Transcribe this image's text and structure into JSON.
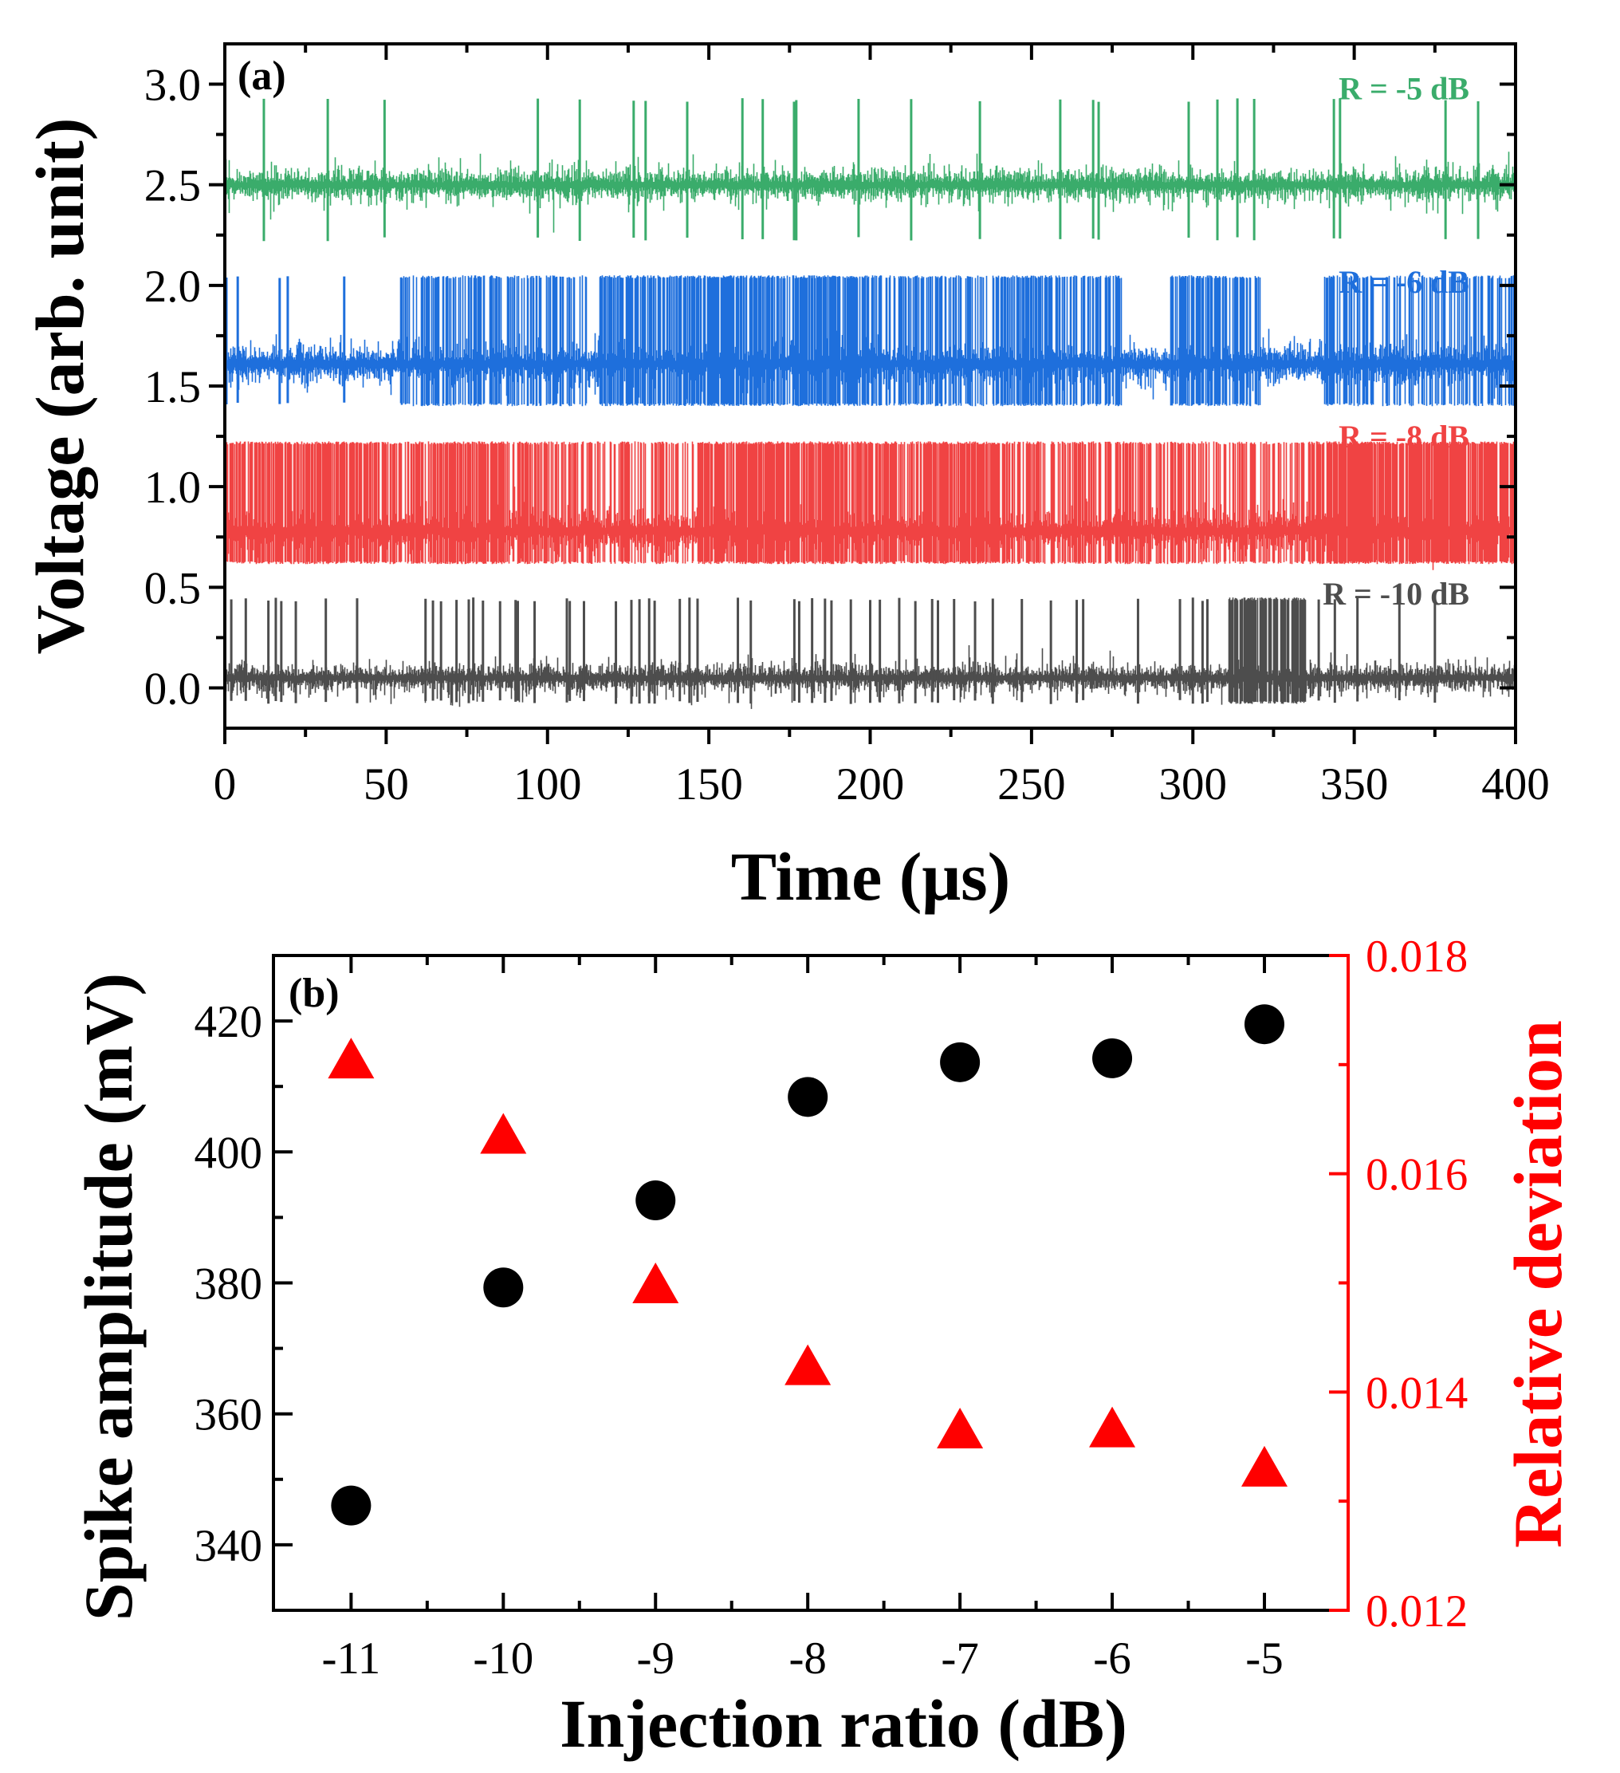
{
  "chart_data": [
    {
      "id": "a",
      "type": "line",
      "panel_label": "(a)",
      "xlabel": "Time (μs)",
      "ylabel": "Voltage (arb. unit)",
      "xlim": [
        0,
        400
      ],
      "ylim": [
        -0.2,
        3.2
      ],
      "xticks": [
        0,
        50,
        100,
        150,
        200,
        250,
        300,
        350,
        400
      ],
      "xtick_labels": [
        "0",
        "50",
        "100",
        "150",
        "200",
        "250",
        "300",
        "350",
        "400"
      ],
      "yticks": [
        0.0,
        0.5,
        1.0,
        1.5,
        2.0,
        2.5,
        3.0
      ],
      "ytick_labels": [
        "0.0",
        "0.5",
        "1.0",
        "1.5",
        "2.0",
        "2.5",
        "3.0"
      ],
      "grid": false,
      "series": [
        {
          "name": "R = -5 dB",
          "label": "R = -5 dB",
          "color": "#3aac6b",
          "baseline": 2.5,
          "noise": 0.04,
          "spike_top": 2.93,
          "spike_bottom": 2.22,
          "spike_times": [
            12.1,
            31.9,
            49.5,
            97.0,
            110.0,
            126.7,
            130.4,
            143.3,
            160.4,
            166.7,
            176.4,
            177.1,
            196.4,
            212.7,
            234.0,
            258.9,
            269.1,
            270.8,
            298.7,
            307.6,
            313.8,
            319.0,
            343.7,
            345.6,
            378.3,
            388.4
          ],
          "burst_regions": []
        },
        {
          "name": "R = -6 dB",
          "label": "R = -6 dB",
          "color": "#1e6fdc",
          "baseline": 1.61,
          "noise": 0.05,
          "spike_top": 2.05,
          "spike_bottom": 1.4,
          "spike_times": [
            0.5,
            4.0,
            17.0,
            19.5,
            37.0
          ],
          "burst_regions": [
            [
              54,
              112,
              0.45
            ],
            [
              116,
              200,
              0.75
            ],
            [
              200,
              278,
              0.55
            ],
            [
              293,
              321,
              0.6
            ],
            [
              340,
              356,
              0.5
            ],
            [
              358,
              400,
              0.35
            ]
          ]
        },
        {
          "name": "R = -8 dB",
          "label": "R = -8 dB",
          "color": "#f04343",
          "baseline": 0.78,
          "noise": 0.05,
          "spike_top": 1.225,
          "spike_bottom": 0.615,
          "spike_times": [],
          "burst_regions": [
            [
              0,
              100,
              0.7
            ],
            [
              100,
              146,
              0.45
            ],
            [
              146,
              240,
              0.8
            ],
            [
              240,
              300,
              0.6
            ],
            [
              300,
              337,
              0.4
            ],
            [
              337,
              400,
              0.85
            ]
          ]
        },
        {
          "name": "R = -10 dB",
          "label": "R = -10 dB",
          "color": "#4d4d4d",
          "baseline": 0.05,
          "noise": 0.035,
          "spike_top": 0.45,
          "spike_bottom": -0.08,
          "spike_times": [
            2.0,
            6.5,
            13.5,
            15.8,
            17.5,
            22.0,
            31.3,
            41.0,
            62.2,
            64.5,
            67.0,
            71.8,
            75.6,
            77.0,
            80.0,
            85.3,
            90.1,
            90.8,
            96.0,
            106.0,
            106.9,
            111.3,
            121.2,
            126.0,
            128.5,
            131.5,
            133.2,
            141.0,
            144.0,
            146.5,
            159.0,
            163.0,
            176.5,
            178.0,
            182.0,
            186.0,
            188.0,
            194.0,
            200.0,
            203.0,
            209.0,
            214.0,
            219.2,
            221.0,
            226.0,
            232.5,
            238.0,
            247.0,
            256.0,
            264.0,
            266.0,
            283.0,
            296.0,
            300.0,
            303.0,
            304.5,
            339.0,
            344.0,
            351.0,
            364.0,
            375.0
          ],
          "burst_regions": [
            [
              311,
              335,
              0.9
            ]
          ]
        }
      ]
    },
    {
      "id": "b",
      "type": "scatter",
      "panel_label": "(b)",
      "xlabel": "Injection ratio (dB)",
      "ylabel": "Spike amplitude (mV)",
      "ylabel_right": "Relative deviation",
      "xlim": [
        -11.51,
        -4.45
      ],
      "ylim": [
        330,
        430
      ],
      "ylim_right": [
        0.012,
        0.018
      ],
      "xticks": [
        -11,
        -10,
        -9,
        -8,
        -7,
        -6,
        -5
      ],
      "xtick_labels": [
        "-11",
        "-10",
        "-9",
        "-8",
        "-7",
        "-6",
        "-5"
      ],
      "yticks": [
        340,
        360,
        380,
        400,
        420
      ],
      "ytick_labels": [
        "340",
        "360",
        "380",
        "400",
        "420"
      ],
      "yticks_right": [
        0.012,
        0.014,
        0.016,
        0.018
      ],
      "ytick_labels_right": [
        "0.012",
        "0.014",
        "0.016",
        "0.018"
      ],
      "right_axis_color": "#ff0000",
      "grid": false,
      "series": [
        {
          "name": "Spike amplitude",
          "axis": "left",
          "marker": "circle",
          "color": "#000000",
          "x": [
            -11,
            -10,
            -9,
            -8,
            -7,
            -6,
            -5
          ],
          "y": [
            346.0,
            379.3,
            392.6,
            408.4,
            413.7,
            414.3,
            419.5
          ]
        },
        {
          "name": "Relative deviation",
          "axis": "right",
          "marker": "triangle",
          "color": "#ff0000",
          "x": [
            -11,
            -10,
            -9,
            -8,
            -7,
            -6,
            -5
          ],
          "y": [
            0.01706,
            0.01637,
            0.015,
            0.01425,
            0.01367,
            0.01368,
            0.01332
          ]
        }
      ]
    }
  ]
}
